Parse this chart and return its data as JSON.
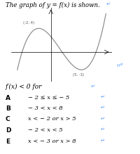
{
  "title": "The graph of y = f(x) is shown.",
  "curve_color": "#909090",
  "axis_color": "#000000",
  "background_color": "#ffffff",
  "local_max_label": "(-2, 4)",
  "local_min_label": "(5, -3)",
  "question": "f′(x) < 0 for",
  "options": [
    {
      "letter": "A",
      "text": "− 2 ≤ x ≤ − 5"
    },
    {
      "letter": "B",
      "text": "− 3 < x < 8"
    },
    {
      "letter": "C",
      "text": "x < − 2 or x > 5"
    },
    {
      "letter": "D",
      "text": "− 2 < x < 5"
    },
    {
      "letter": "E",
      "text": "x < − 3 or x > 8"
    }
  ],
  "annotation_color": "#5599ff",
  "letter_fontsize": 6.5,
  "option_fontsize": 6.0,
  "title_fontsize": 6.2,
  "question_fontsize": 6.5
}
